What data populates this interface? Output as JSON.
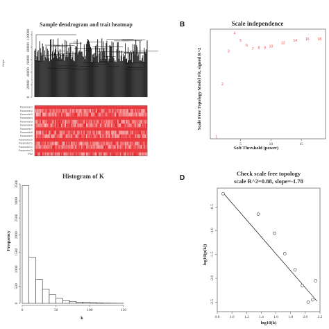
{
  "panel_letters": {
    "b": "B",
    "d": "D"
  },
  "chart_data": [
    {
      "id": "A",
      "type": "heatmap",
      "title": "Sample dendrogram and trait heatmap",
      "ylabel": "Height",
      "yticks": [
        "0",
        "20000",
        "40000",
        "60000",
        "80000",
        "120000"
      ],
      "trait_rows": 14,
      "trait_labels": [
        "Parameter1",
        "Parameter2",
        "Parameter3",
        "Parameter4",
        "Parameter5",
        "Parameter6",
        "Parameter7",
        "Parameter8",
        "Parameter9",
        "Parameter10",
        "Parameter11",
        "Parameter12",
        "Parameter13",
        "TNM"
      ],
      "colors": {
        "high": "#e8262b",
        "low": "#ffffff"
      }
    },
    {
      "id": "B",
      "type": "scatter",
      "title": "Scale independence",
      "xlabel": "Soft Threshold (power)",
      "ylabel": "Scale Free Topology Model Fit, signed R^2",
      "xlim": [
        0,
        19
      ],
      "xticks": [
        5,
        10,
        15
      ],
      "points": [
        {
          "x": 1,
          "y": 0.02
        },
        {
          "x": 2,
          "y": 0.45
        },
        {
          "x": 3,
          "y": 0.72
        },
        {
          "x": 4,
          "y": 0.87
        },
        {
          "x": 5,
          "y": 0.81
        },
        {
          "x": 6,
          "y": 0.77
        },
        {
          "x": 7,
          "y": 0.74
        },
        {
          "x": 8,
          "y": 0.75
        },
        {
          "x": 9,
          "y": 0.75
        },
        {
          "x": 10,
          "y": 0.76
        },
        {
          "x": 12,
          "y": 0.79
        },
        {
          "x": 14,
          "y": 0.81
        },
        {
          "x": 16,
          "y": 0.82
        },
        {
          "x": 18,
          "y": 0.82
        }
      ],
      "ylim": [
        0,
        0.9
      ],
      "marker_color": "#e44"
    },
    {
      "id": "C",
      "type": "bar",
      "title": "Histogram of K",
      "xlabel": "k",
      "ylabel": "Frequency",
      "bin_width": 10,
      "bins": [
        0,
        10,
        20,
        30,
        40,
        50,
        60,
        70,
        80,
        90,
        100,
        110,
        120,
        130,
        140
      ],
      "values": [
        3450,
        1350,
        700,
        420,
        250,
        150,
        90,
        55,
        35,
        25,
        20,
        12,
        8,
        5,
        3
      ],
      "xlim": [
        0,
        150
      ],
      "ylim": [
        0,
        3500
      ],
      "xticks": [
        0,
        50,
        100,
        150
      ],
      "yticks": [
        0,
        500,
        1000,
        1500,
        2000,
        2500,
        3000,
        3500
      ]
    },
    {
      "id": "D",
      "type": "scatter",
      "title": "Check scale free topology",
      "subtitle": "scale R^2=0.88, slope=-1.78",
      "xlabel": "log10(k)",
      "ylabel": "log10(p(k))",
      "xlim": [
        0.8,
        2.2
      ],
      "ylim": [
        -2.7,
        -0.1
      ],
      "xticks": [
        0.8,
        1.0,
        1.2,
        1.4,
        1.6,
        1.8,
        2.0,
        2.2
      ],
      "yticks": [
        -2.5,
        -2.0,
        -1.5,
        -1.0,
        -0.5
      ],
      "points": [
        {
          "x": 0.88,
          "y": -0.22
        },
        {
          "x": 1.36,
          "y": -0.65
        },
        {
          "x": 1.58,
          "y": -1.05
        },
        {
          "x": 1.72,
          "y": -1.48
        },
        {
          "x": 1.86,
          "y": -1.82
        },
        {
          "x": 1.96,
          "y": -2.15
        },
        {
          "x": 2.04,
          "y": -2.5
        },
        {
          "x": 2.1,
          "y": -2.45
        },
        {
          "x": 2.14,
          "y": -2.05
        }
      ],
      "fit_line": {
        "x0": 0.88,
        "y0": -0.2,
        "x1": 2.16,
        "y1": -2.48
      }
    }
  ]
}
